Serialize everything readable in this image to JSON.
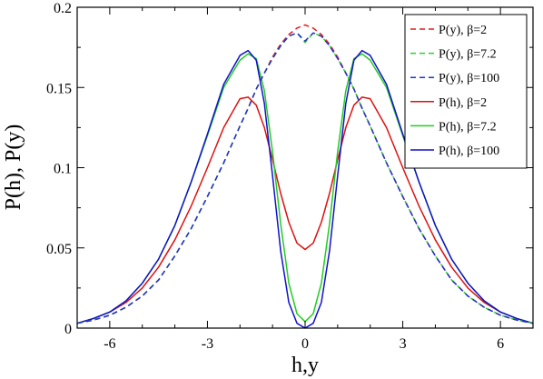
{
  "chart_data": {
    "type": "line",
    "title": "",
    "xlabel": "h,y",
    "ylabel": "P(h), P(y)",
    "xlim": [
      -7,
      7
    ],
    "ylim": [
      0,
      0.2
    ],
    "x_ticks": [
      -6,
      -3,
      0,
      3,
      6
    ],
    "x_tick_labels": [
      "-6",
      "-3",
      "0",
      "3",
      "6"
    ],
    "y_ticks": [
      0,
      0.05,
      0.1,
      0.15,
      0.2
    ],
    "y_tick_labels": [
      "0",
      "0.05",
      "0.1",
      "0.15",
      "0.2"
    ],
    "grid": false,
    "legend_position": "top-right",
    "x": [
      -7,
      -6.5,
      -6,
      -5.5,
      -5,
      -4.5,
      -4,
      -3.5,
      -3,
      -2.5,
      -2,
      -1.75,
      -1.5,
      -1.25,
      -1,
      -0.75,
      -0.5,
      -0.25,
      0,
      0.25,
      0.5,
      0.75,
      1,
      1.25,
      1.5,
      1.75,
      2,
      2.5,
      3,
      3.5,
      4,
      4.5,
      5,
      5.5,
      6,
      6.5,
      7
    ],
    "series": [
      {
        "name": "P(y), β=2",
        "color": "#e41a1c",
        "dash": "dashed",
        "values": [
          0.003,
          0.005,
          0.008,
          0.013,
          0.02,
          0.03,
          0.045,
          0.062,
          0.082,
          0.103,
          0.126,
          0.137,
          0.149,
          0.159,
          0.169,
          0.177,
          0.183,
          0.187,
          0.189,
          0.187,
          0.183,
          0.177,
          0.169,
          0.159,
          0.149,
          0.137,
          0.126,
          0.103,
          0.082,
          0.062,
          0.045,
          0.03,
          0.02,
          0.013,
          0.008,
          0.005,
          0.003
        ]
      },
      {
        "name": "P(y), β=7.2",
        "color": "#33cc33",
        "dash": "dashed",
        "values": [
          0.003,
          0.005,
          0.008,
          0.013,
          0.02,
          0.03,
          0.045,
          0.062,
          0.082,
          0.103,
          0.126,
          0.137,
          0.149,
          0.159,
          0.168,
          0.176,
          0.182,
          0.184,
          0.178,
          0.184,
          0.182,
          0.176,
          0.168,
          0.159,
          0.149,
          0.137,
          0.126,
          0.103,
          0.082,
          0.062,
          0.045,
          0.03,
          0.02,
          0.013,
          0.008,
          0.005,
          0.003
        ]
      },
      {
        "name": "P(y), β=100",
        "color": "#2233cc",
        "dash": "dashed",
        "values": [
          0.003,
          0.005,
          0.008,
          0.013,
          0.02,
          0.03,
          0.045,
          0.062,
          0.082,
          0.103,
          0.126,
          0.137,
          0.149,
          0.159,
          0.168,
          0.176,
          0.182,
          0.184,
          0.179,
          0.184,
          0.182,
          0.176,
          0.168,
          0.159,
          0.149,
          0.137,
          0.126,
          0.103,
          0.082,
          0.062,
          0.045,
          0.03,
          0.02,
          0.013,
          0.008,
          0.005,
          0.003
        ]
      },
      {
        "name": "P(h), β=2",
        "color": "#dd1111",
        "dash": "solid",
        "values": [
          0.003,
          0.006,
          0.01,
          0.016,
          0.025,
          0.038,
          0.055,
          0.076,
          0.1,
          0.125,
          0.143,
          0.144,
          0.139,
          0.125,
          0.105,
          0.084,
          0.066,
          0.053,
          0.049,
          0.053,
          0.066,
          0.084,
          0.105,
          0.125,
          0.139,
          0.144,
          0.143,
          0.125,
          0.1,
          0.076,
          0.055,
          0.038,
          0.025,
          0.016,
          0.01,
          0.006,
          0.003
        ]
      },
      {
        "name": "P(h), β=7.2",
        "color": "#22cc22",
        "dash": "solid",
        "values": [
          0.003,
          0.006,
          0.01,
          0.017,
          0.028,
          0.043,
          0.064,
          0.091,
          0.12,
          0.15,
          0.167,
          0.171,
          0.168,
          0.148,
          0.11,
          0.065,
          0.028,
          0.009,
          0.004,
          0.009,
          0.028,
          0.065,
          0.11,
          0.148,
          0.168,
          0.171,
          0.167,
          0.15,
          0.12,
          0.091,
          0.064,
          0.043,
          0.028,
          0.017,
          0.01,
          0.006,
          0.003
        ]
      },
      {
        "name": "P(h), β=100",
        "color": "#1111cc",
        "dash": "solid",
        "values": [
          0.003,
          0.006,
          0.01,
          0.017,
          0.028,
          0.043,
          0.064,
          0.091,
          0.121,
          0.152,
          0.17,
          0.173,
          0.167,
          0.14,
          0.095,
          0.048,
          0.016,
          0.003,
          0.0,
          0.003,
          0.016,
          0.048,
          0.095,
          0.14,
          0.167,
          0.173,
          0.17,
          0.152,
          0.121,
          0.091,
          0.064,
          0.043,
          0.028,
          0.017,
          0.01,
          0.006,
          0.003
        ]
      }
    ]
  }
}
